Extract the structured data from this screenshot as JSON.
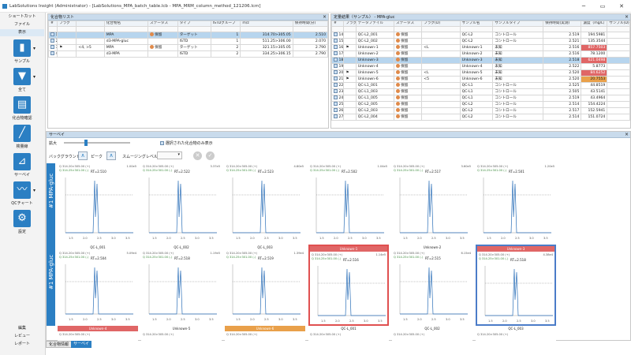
{
  "window": {
    "title": "LabSolutions Insight (Administrator) - [LabSolutions_MPA_batch_table.lcb - MPA_MRM_column_method_121206.lcm]",
    "btn_min": "─",
    "btn_max": "▭",
    "btn_close": "✕"
  },
  "sidebar": {
    "menu_top": [
      "ショートカット",
      "ファイル",
      "表示"
    ],
    "tools": [
      {
        "label": "サンプル",
        "icon": "flask-icon",
        "glyph": "▮"
      },
      {
        "label": "全て",
        "icon": "filter-icon",
        "glyph": "▼"
      },
      {
        "label": "化合物確認",
        "icon": "document-icon",
        "glyph": "▤"
      },
      {
        "label": "検量線",
        "icon": "calibration-icon",
        "glyph": "╱"
      },
      {
        "label": "サーベイ",
        "icon": "telescope-icon",
        "glyph": "⊿"
      },
      {
        "label": "QCチャート",
        "icon": "qc-chart-icon",
        "glyph": "〰"
      },
      {
        "label": "設定",
        "icon": "settings-icon",
        "glyph": "⚙"
      }
    ],
    "menu_bottom": [
      "編集",
      "レビュー",
      "レポート"
    ]
  },
  "compound_list": {
    "title": "化合物リスト",
    "headers": [
      "#",
      "フラグ",
      "",
      "化合物名",
      "ステータス",
      "タイプ",
      "ISTDグループ",
      "m/z",
      "保持時間(分)"
    ],
    "rows": [
      [
        "1",
        "",
        "",
        "MPA",
        "保留",
        "ターゲット",
        "1",
        "314.70>305.05",
        "2.510"
      ],
      [
        "2",
        "",
        "",
        "d3-MPA-gluc",
        "",
        "ISTD",
        "1",
        "511.25>306.00",
        "2.070"
      ],
      [
        "3",
        "⚑",
        "<4, >5",
        "MPA",
        "保留",
        "ターゲット",
        "2",
        "321.15>305.05",
        "2.790"
      ],
      [
        "4",
        "",
        "",
        "d3-MPA",
        "",
        "ISTD",
        "2",
        "334.25>306.15",
        "2.790"
      ]
    ]
  },
  "quant_results": {
    "title": "定量結果（サンプル） - MPA-gluc",
    "headers": [
      "#",
      "フラグ",
      "データファイル",
      "ステータス",
      "フラグ(D)",
      "サンプル名",
      "サンプルタイプ",
      "保持時間(実測)",
      "濃度（mg/L）",
      "サンプル(D)"
    ],
    "rows": [
      [
        "14",
        "",
        "QC-L2_001",
        "保留",
        "",
        "QC-L2",
        "コントロール",
        "2.519",
        "194.5981",
        ""
      ],
      [
        "15",
        "",
        "QC-L2_002",
        "保留",
        "",
        "QC-L2",
        "コントロール",
        "2.521",
        "135.3544",
        ""
      ],
      [
        "16",
        "⚑",
        "Unknown-1",
        "保留",
        "<L",
        "Unknown-1",
        "未知",
        "2.516",
        "857.7503",
        ""
      ],
      [
        "17",
        "",
        "Unknown-2",
        "保留",
        "",
        "Unknown-2",
        "未知",
        "2.516",
        "78.1200",
        ""
      ],
      [
        "18",
        "",
        "Unknown-3",
        "保留",
        "",
        "Unknown-3",
        "未知",
        "2.518",
        "621.0498",
        ""
      ],
      [
        "19",
        "",
        "Unknown-4",
        "保留",
        "",
        "Unknown-4",
        "未知",
        "2.522",
        "5.8773",
        ""
      ],
      [
        "20",
        "⚑",
        "Unknown-5",
        "保留",
        "<L",
        "Unknown-5",
        "未知",
        "2.520",
        "84.6252",
        ""
      ],
      [
        "21",
        "⚑",
        "Unknown-6",
        "保留",
        "<5",
        "Unknown-6",
        "未知",
        "2.520",
        "20.7553",
        ""
      ],
      [
        "22",
        "",
        "QC-L1_001",
        "保留",
        "",
        "QC-L1",
        "コントロール",
        "2.525",
        "44.8519",
        ""
      ],
      [
        "23",
        "",
        "QC-L1_003",
        "保留",
        "",
        "QC-L1",
        "コントロール",
        "2.505",
        "43.5141",
        ""
      ],
      [
        "24",
        "",
        "QC-L1_005",
        "保留",
        "",
        "QC-L1",
        "コントロール",
        "2.519",
        "43.4964",
        ""
      ],
      [
        "25",
        "",
        "QC-L2_005",
        "保留",
        "",
        "QC-L2",
        "コントロール",
        "2.514",
        "154.4224",
        ""
      ],
      [
        "26",
        "",
        "QC-L2_003",
        "保留",
        "",
        "QC-L2",
        "コントロール",
        "2.517",
        "152.5941",
        ""
      ],
      [
        "27",
        "",
        "QC-L2_004",
        "保留",
        "",
        "QC-L2",
        "コントロール",
        "2.514",
        "151.0724",
        ""
      ]
    ],
    "highlight": {
      "16": "red",
      "18": "red",
      "20": "red",
      "21": "orange"
    }
  },
  "survey": {
    "title": "サーベイ",
    "zoom_label": "拡大",
    "show_selected_label": "選択された化合物のみ表示",
    "background_label": "バックグラウンド",
    "peak_label": "ピーク",
    "smoothing_label": "スムージングレベル",
    "row_labels": [
      "#1 MPA-gluc",
      "#1 MPA-gluc"
    ],
    "header_text": "Q 314.20>305.00 (+)",
    "trace_text": "Q 314.25>301.00 (-)",
    "rt_values": [
      "RT=2.510",
      "RT=2.522",
      "RT=2.523",
      "RT=2.502",
      "RT=2.517",
      "RT=2.501",
      "RT=2.504",
      "RT=2.518",
      "RT=2.519",
      "RT=2.516",
      "RT=2.515",
      "RT=2.518"
    ],
    "intensity_values": [
      "1.00e5",
      "3.37e5",
      "4.80e5",
      "1.04e5",
      "3.60e5",
      "1.20e5",
      "5.09e4",
      "1.19e5",
      "1.39e4",
      "1.14e5",
      "6.15e4",
      "4.38e4"
    ],
    "cell_names": [
      "",
      "",
      "",
      "",
      "",
      "",
      "QC-L_001",
      "QC-L_002",
      "QC-L_003",
      "Unknown-1",
      "Unknown-2",
      "Unknown-3",
      "Unknown-4",
      "Unknown-5",
      "Unknown-6",
      "QC-L_001",
      "QC-L_002",
      "QC-L_003"
    ]
  },
  "bottom_tabs": [
    "化合物情報",
    "サーベイ"
  ]
}
